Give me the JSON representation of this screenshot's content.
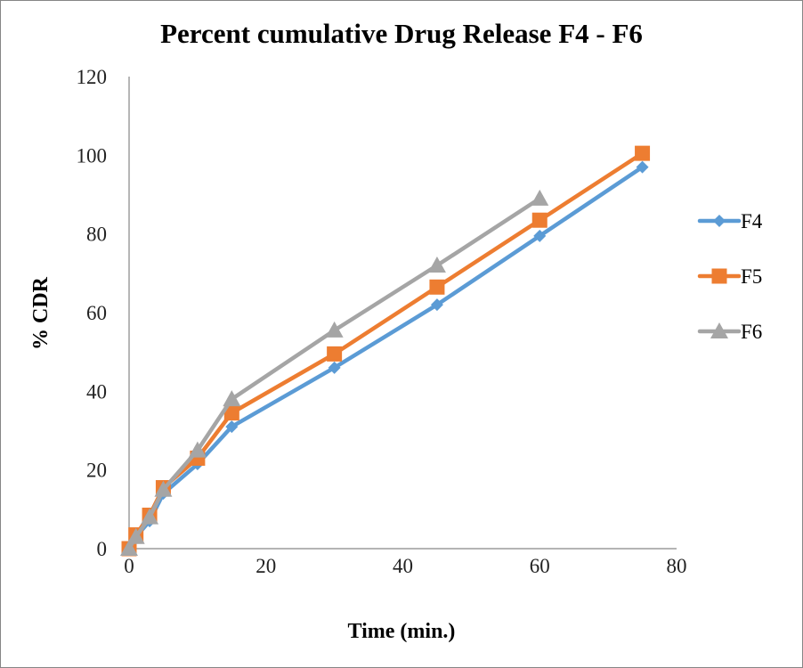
{
  "chart_data": {
    "type": "line",
    "title": "Percent cumulative  Drug Release F4 - F6",
    "xlabel": "Time (min.)",
    "ylabel": "% CDR",
    "xlim": [
      0,
      80
    ],
    "ylim": [
      0,
      120
    ],
    "xticks": [
      "0",
      "20",
      "40",
      "60",
      "80"
    ],
    "yticks": [
      "0",
      "20",
      "40",
      "60",
      "80",
      "100",
      "120"
    ],
    "grid": false,
    "legend_position": "right",
    "series": [
      {
        "name": "F4",
        "color": "#5B9BD5",
        "marker": "diamond",
        "x": [
          0,
          1,
          3,
          5,
          10,
          15,
          30,
          45,
          60,
          75
        ],
        "y": [
          0,
          3,
          7,
          14,
          21.5,
          31,
          46,
          62,
          79.5,
          97
        ]
      },
      {
        "name": "F5",
        "color": "#ED7D31",
        "marker": "square",
        "x": [
          0,
          1,
          3,
          5,
          10,
          15,
          30,
          45,
          60,
          75
        ],
        "y": [
          0,
          3.5,
          8.5,
          15.5,
          23,
          34.5,
          49.5,
          66.5,
          83.5,
          100.5
        ]
      },
      {
        "name": "F6",
        "color": "#A5A5A5",
        "marker": "triangle",
        "x": [
          0,
          1,
          3,
          5,
          10,
          15,
          30,
          45,
          60
        ],
        "y": [
          0,
          3,
          8,
          15,
          25,
          38,
          55.5,
          72,
          89
        ]
      }
    ]
  }
}
